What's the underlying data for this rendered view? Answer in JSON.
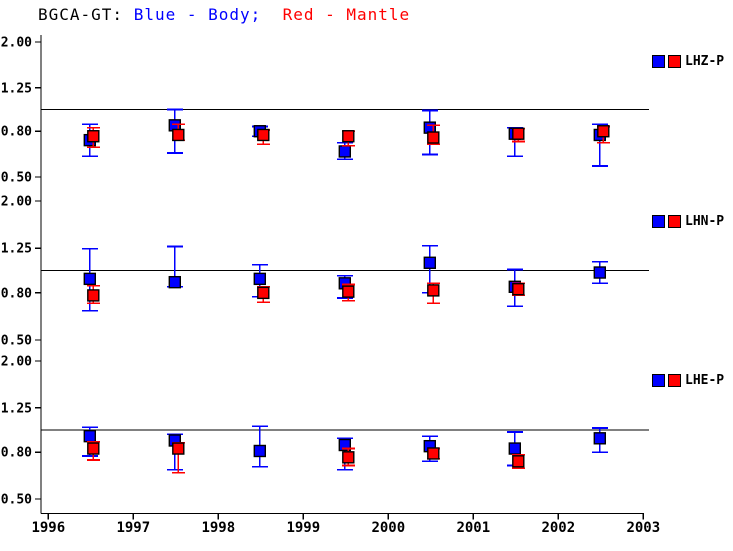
{
  "title": {
    "station": "BGCA-GT: ",
    "blue_part": "Blue - Body;  ",
    "red_part": "Red - Mantle"
  },
  "colors": {
    "body": "#0000ff",
    "mantle": "#ff0000",
    "axis": "#000000",
    "background": "#ffffff"
  },
  "chart_data": {
    "type": "scatter",
    "error_bars": true,
    "title": "BGCA-GT: Blue - Body; Red - Mantle",
    "x_tick_labels": [
      "1996",
      "1997",
      "1998",
      "1999",
      "2000",
      "2001",
      "2002",
      "2003"
    ],
    "x_tick_values": [
      1996,
      1997,
      1998,
      1999,
      2000,
      2001,
      2002,
      2003
    ],
    "x_range": [
      1995.92,
      2003.0
    ],
    "y_scale": "log",
    "y_tick_labels": [
      "2.00",
      "1.25",
      "0.80",
      "0.50"
    ],
    "y_tick_values": [
      2.0,
      1.25,
      0.8,
      0.5
    ],
    "y_range": [
      0.45,
      2.2
    ],
    "reference_line": 1.0,
    "grid": false,
    "legend_position": "right-of-each-panel",
    "series_names": [
      "Body",
      "Mantle"
    ],
    "panels": [
      {
        "label": "LHZ-P",
        "points": [
          {
            "x": 1996.5,
            "body": {
              "v": 0.73,
              "lo": 0.62,
              "hi": 0.86
            },
            "mantle": {
              "v": 0.76,
              "lo": 0.68,
              "hi": 0.83
            }
          },
          {
            "x": 1997.5,
            "body": {
              "v": 0.85,
              "lo": 0.64,
              "hi": 1.0
            },
            "mantle": {
              "v": 0.77,
              "lo": 0.73,
              "hi": 0.86
            }
          },
          {
            "x": 1998.5,
            "body": {
              "v": 0.8,
              "lo": 0.76,
              "hi": 0.84
            },
            "mantle": {
              "v": 0.77,
              "lo": 0.7,
              "hi": 0.81
            }
          },
          {
            "x": 1999.5,
            "body": {
              "v": 0.65,
              "lo": 0.6,
              "hi": 0.71
            },
            "mantle": {
              "v": 0.76,
              "lo": 0.69,
              "hi": 0.8
            }
          },
          {
            "x": 2000.5,
            "body": {
              "v": 0.83,
              "lo": 0.63,
              "hi": 0.99
            },
            "mantle": {
              "v": 0.75,
              "lo": 0.7,
              "hi": 0.85
            }
          },
          {
            "x": 2001.5,
            "body": {
              "v": 0.78,
              "lo": 0.62,
              "hi": 0.83
            },
            "mantle": {
              "v": 0.78,
              "lo": 0.72,
              "hi": 0.82
            }
          },
          {
            "x": 2002.5,
            "body": {
              "v": 0.77,
              "lo": 0.56,
              "hi": 0.86
            },
            "mantle": {
              "v": 0.8,
              "lo": 0.71,
              "hi": 0.84
            }
          }
        ]
      },
      {
        "label": "LHN-P",
        "points": [
          {
            "x": 1996.5,
            "body": {
              "v": 0.92,
              "lo": 0.67,
              "hi": 1.24
            },
            "mantle": {
              "v": 0.78,
              "lo": 0.72,
              "hi": 0.86
            }
          },
          {
            "x": 1997.5,
            "body": {
              "v": 0.89,
              "lo": 0.85,
              "hi": 1.27
            },
            "mantle": null
          },
          {
            "x": 1998.5,
            "body": {
              "v": 0.92,
              "lo": 0.77,
              "hi": 1.06
            },
            "mantle": {
              "v": 0.8,
              "lo": 0.73,
              "hi": 0.85
            }
          },
          {
            "x": 1999.5,
            "body": {
              "v": 0.88,
              "lo": 0.76,
              "hi": 0.95
            },
            "mantle": {
              "v": 0.81,
              "lo": 0.74,
              "hi": 0.87
            }
          },
          {
            "x": 2000.5,
            "body": {
              "v": 1.08,
              "lo": 0.8,
              "hi": 1.28
            },
            "mantle": {
              "v": 0.82,
              "lo": 0.72,
              "hi": 0.88
            }
          },
          {
            "x": 2001.5,
            "body": {
              "v": 0.85,
              "lo": 0.7,
              "hi": 1.01
            },
            "mantle": {
              "v": 0.83,
              "lo": 0.78,
              "hi": 0.88
            }
          },
          {
            "x": 2002.5,
            "body": {
              "v": 0.98,
              "lo": 0.88,
              "hi": 1.09
            },
            "mantle": null
          }
        ]
      },
      {
        "label": "LHE-P",
        "points": [
          {
            "x": 1996.5,
            "body": {
              "v": 0.94,
              "lo": 0.77,
              "hi": 1.03
            },
            "mantle": {
              "v": 0.83,
              "lo": 0.74,
              "hi": 0.89
            }
          },
          {
            "x": 1997.5,
            "body": {
              "v": 0.9,
              "lo": 0.67,
              "hi": 0.96
            },
            "mantle": {
              "v": 0.83,
              "lo": 0.65,
              "hi": 0.88
            }
          },
          {
            "x": 1998.5,
            "body": {
              "v": 0.81,
              "lo": 0.69,
              "hi": 1.04
            },
            "mantle": null
          },
          {
            "x": 1999.5,
            "body": {
              "v": 0.86,
              "lo": 0.67,
              "hi": 0.92
            },
            "mantle": {
              "v": 0.76,
              "lo": 0.7,
              "hi": 0.83
            }
          },
          {
            "x": 2000.5,
            "body": {
              "v": 0.85,
              "lo": 0.73,
              "hi": 0.94
            },
            "mantle": {
              "v": 0.79,
              "lo": 0.75,
              "hi": 0.83
            }
          },
          {
            "x": 2001.5,
            "body": {
              "v": 0.83,
              "lo": 0.7,
              "hi": 0.98
            },
            "mantle": {
              "v": 0.73,
              "lo": 0.68,
              "hi": 0.78
            }
          },
          {
            "x": 2002.5,
            "body": {
              "v": 0.92,
              "lo": 0.8,
              "hi": 1.02
            },
            "mantle": null
          }
        ]
      }
    ]
  }
}
